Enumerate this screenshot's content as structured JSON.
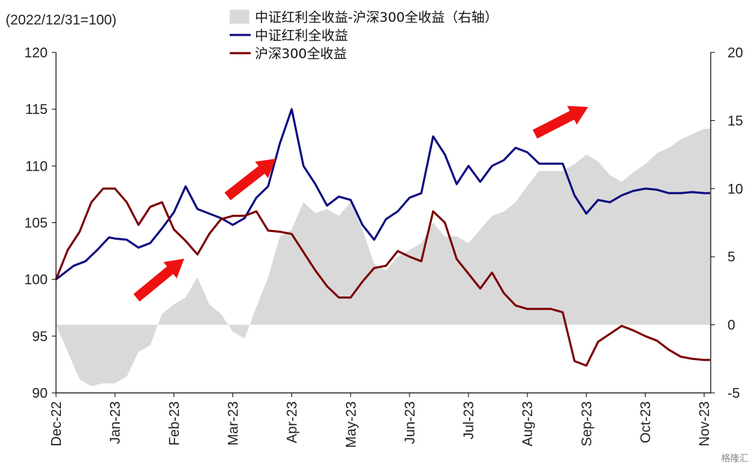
{
  "chart_data": {
    "type": "line",
    "unit_label": "(2022/12/31=100)",
    "watermark": "格隆汇",
    "colors": {
      "dividend": "#0a0a80",
      "csi300": "#7a0000",
      "spread": "#d9d9d9",
      "arrow": "#ee1111",
      "neg_label": "#e00000"
    },
    "legend": [
      {
        "name": "中证红利全收益-沪深300全收益（右轴）",
        "kind": "area",
        "color": "#d9d9d9"
      },
      {
        "name": "中证红利全收益",
        "kind": "line",
        "color": "#0a0a80"
      },
      {
        "name": "沪深300全收益",
        "kind": "line",
        "color": "#7a0000"
      }
    ],
    "x_labels": [
      "Dec-22",
      "Jan-23",
      "Feb-23",
      "Mar-23",
      "Apr-23",
      "May-23",
      "Jun-23",
      "Jul-23",
      "Aug-23",
      "Sep-23",
      "Oct-23",
      "Nov-23"
    ],
    "y_left": {
      "min": 90,
      "max": 120,
      "ticks": [
        "90",
        "95",
        "100",
        "105",
        "110",
        "115",
        "120"
      ]
    },
    "y_right": {
      "min": -5,
      "max": 20,
      "ticks": [
        "-5",
        "0",
        "5",
        "10",
        "15",
        "20"
      ]
    },
    "series": [
      {
        "name": "中证红利全收益",
        "axis": "left",
        "x": [
          0,
          0.3,
          0.5,
          0.7,
          0.9,
          1.0,
          1.2,
          1.4,
          1.6,
          1.8,
          2.0,
          2.2,
          2.4,
          2.6,
          2.8,
          3.0,
          3.2,
          3.4,
          3.6,
          3.8,
          4.0,
          4.2,
          4.4,
          4.6,
          4.8,
          5.0,
          5.2,
          5.4,
          5.6,
          5.8,
          6.0,
          6.2,
          6.4,
          6.6,
          6.8,
          7.0,
          7.2,
          7.4,
          7.6,
          7.8,
          8.0,
          8.2,
          8.4,
          8.6,
          8.8,
          9.0,
          9.2,
          9.4,
          9.6,
          9.8,
          10.0,
          10.2,
          10.4,
          10.6,
          10.8,
          11.0,
          11.1
        ],
        "y": [
          100.0,
          101.2,
          101.6,
          102.6,
          103.7,
          103.6,
          103.5,
          102.8,
          103.2,
          104.5,
          105.9,
          108.2,
          106.2,
          105.8,
          105.4,
          104.8,
          105.4,
          107.2,
          108.2,
          112.0,
          115.0,
          110.0,
          108.4,
          106.5,
          107.3,
          107.0,
          104.8,
          103.5,
          105.3,
          106.0,
          107.2,
          107.6,
          112.6,
          111.0,
          108.4,
          110.0,
          108.6,
          110.0,
          110.5,
          111.6,
          111.2,
          110.2,
          110.2,
          110.2,
          107.4,
          105.8,
          107.0,
          106.8,
          107.4,
          107.8,
          108.0,
          107.9,
          107.6,
          107.6,
          107.7,
          107.6,
          107.6
        ]
      },
      {
        "name": "沪深300全收益",
        "axis": "left",
        "x": [
          0,
          0.2,
          0.4,
          0.6,
          0.8,
          1.0,
          1.2,
          1.4,
          1.6,
          1.8,
          2.0,
          2.2,
          2.4,
          2.6,
          2.8,
          3.0,
          3.2,
          3.4,
          3.6,
          3.8,
          4.0,
          4.2,
          4.4,
          4.6,
          4.8,
          5.0,
          5.2,
          5.4,
          5.6,
          5.8,
          6.0,
          6.2,
          6.4,
          6.6,
          6.8,
          7.0,
          7.2,
          7.4,
          7.6,
          7.8,
          8.0,
          8.2,
          8.4,
          8.6,
          8.8,
          9.0,
          9.2,
          9.4,
          9.6,
          9.8,
          10.0,
          10.2,
          10.4,
          10.6,
          10.8,
          11.0,
          11.1
        ],
        "y": [
          100.0,
          102.6,
          104.2,
          106.8,
          108.0,
          108.0,
          106.8,
          104.8,
          106.4,
          106.8,
          104.4,
          103.4,
          102.2,
          104.0,
          105.3,
          105.6,
          105.6,
          106.0,
          104.3,
          104.2,
          104.0,
          102.4,
          100.8,
          99.4,
          98.4,
          98.4,
          99.8,
          101.0,
          101.2,
          102.5,
          102.0,
          101.6,
          106.0,
          105.0,
          101.8,
          100.5,
          99.2,
          100.6,
          98.8,
          97.7,
          97.4,
          97.4,
          97.4,
          97.1,
          92.8,
          92.4,
          94.5,
          95.2,
          95.9,
          95.5,
          95.0,
          94.6,
          93.8,
          93.2,
          93.0,
          92.9,
          92.9
        ]
      },
      {
        "name": "中证红利全收益-沪深300全收益（右轴）",
        "axis": "right",
        "type": "area",
        "x": [
          0,
          0.2,
          0.4,
          0.6,
          0.8,
          1.0,
          1.2,
          1.4,
          1.6,
          1.8,
          2.0,
          2.2,
          2.4,
          2.6,
          2.8,
          3.0,
          3.2,
          3.4,
          3.6,
          3.8,
          4.0,
          4.2,
          4.4,
          4.6,
          4.8,
          5.0,
          5.2,
          5.4,
          5.6,
          5.8,
          6.0,
          6.2,
          6.4,
          6.6,
          6.8,
          7.0,
          7.2,
          7.4,
          7.6,
          7.8,
          8.0,
          8.2,
          8.4,
          8.6,
          8.8,
          9.0,
          9.2,
          9.4,
          9.6,
          9.8,
          10.0,
          10.2,
          10.4,
          10.6,
          10.8,
          11.0,
          11.1
        ],
        "y": [
          0.0,
          -2.0,
          -4.0,
          -4.5,
          -4.3,
          -4.3,
          -3.8,
          -2.0,
          -1.5,
          0.8,
          1.5,
          2.0,
          3.5,
          1.5,
          0.8,
          -0.5,
          -1.0,
          1.3,
          3.5,
          6.5,
          7.0,
          9.0,
          8.2,
          8.5,
          8.0,
          9.0,
          7.0,
          4.5,
          4.0,
          5.0,
          5.5,
          6.0,
          7.5,
          6.5,
          6.5,
          6.0,
          7.0,
          8.0,
          8.3,
          9.0,
          10.2,
          11.3,
          11.3,
          11.3,
          11.8,
          12.5,
          12.0,
          11.0,
          10.5,
          11.2,
          11.8,
          12.6,
          13.0,
          13.6,
          14.0,
          14.4,
          14.4
        ]
      }
    ]
  }
}
